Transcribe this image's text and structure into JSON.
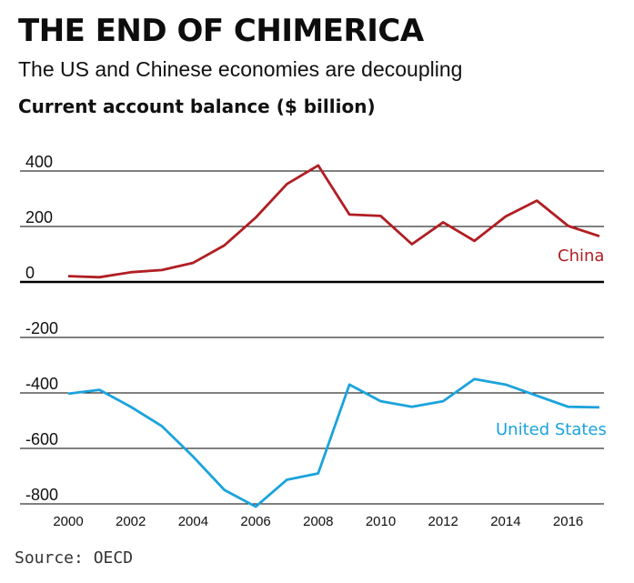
{
  "title": "THE END OF CHIMERICA",
  "subtitle": "The US and Chinese economies are decoupling",
  "source": "Source: OECD",
  "colors": {
    "china": "#b01e23",
    "united_states": "#1ba3dc",
    "grid": "#000000"
  },
  "chart_data": {
    "type": "line",
    "title": "THE END OF CHIMERICA",
    "subtitle": "The US and Chinese economies are decoupling",
    "ylabel": "Current account balance ($ billion)",
    "xlabel": "",
    "x": [
      2000,
      2001,
      2002,
      2003,
      2004,
      2005,
      2006,
      2007,
      2008,
      2009,
      2010,
      2011,
      2012,
      2013,
      2014,
      2015,
      2016,
      2017
    ],
    "xticks": [
      "2000",
      "2002",
      "2004",
      "2006",
      "2008",
      "2010",
      "2012",
      "2014",
      "2016"
    ],
    "yticks": [
      "400",
      "200",
      "0",
      "-200",
      "-400",
      "-600",
      "-800"
    ],
    "ylim": [
      -810,
      420
    ],
    "grid": "horizontal",
    "legend": "direct labels at right end of lines",
    "series": [
      {
        "name": "China",
        "values": [
          21,
          17,
          35,
          43,
          69,
          132,
          232,
          353,
          420,
          243,
          238,
          136,
          215,
          148,
          236,
          293,
          202,
          165
        ]
      },
      {
        "name": "United States",
        "values": [
          -403,
          -389,
          -450,
          -520,
          -630,
          -750,
          -810,
          -713,
          -690,
          -370,
          -430,
          -450,
          -430,
          -350,
          -370,
          -410,
          -450,
          -452
        ]
      }
    ]
  }
}
